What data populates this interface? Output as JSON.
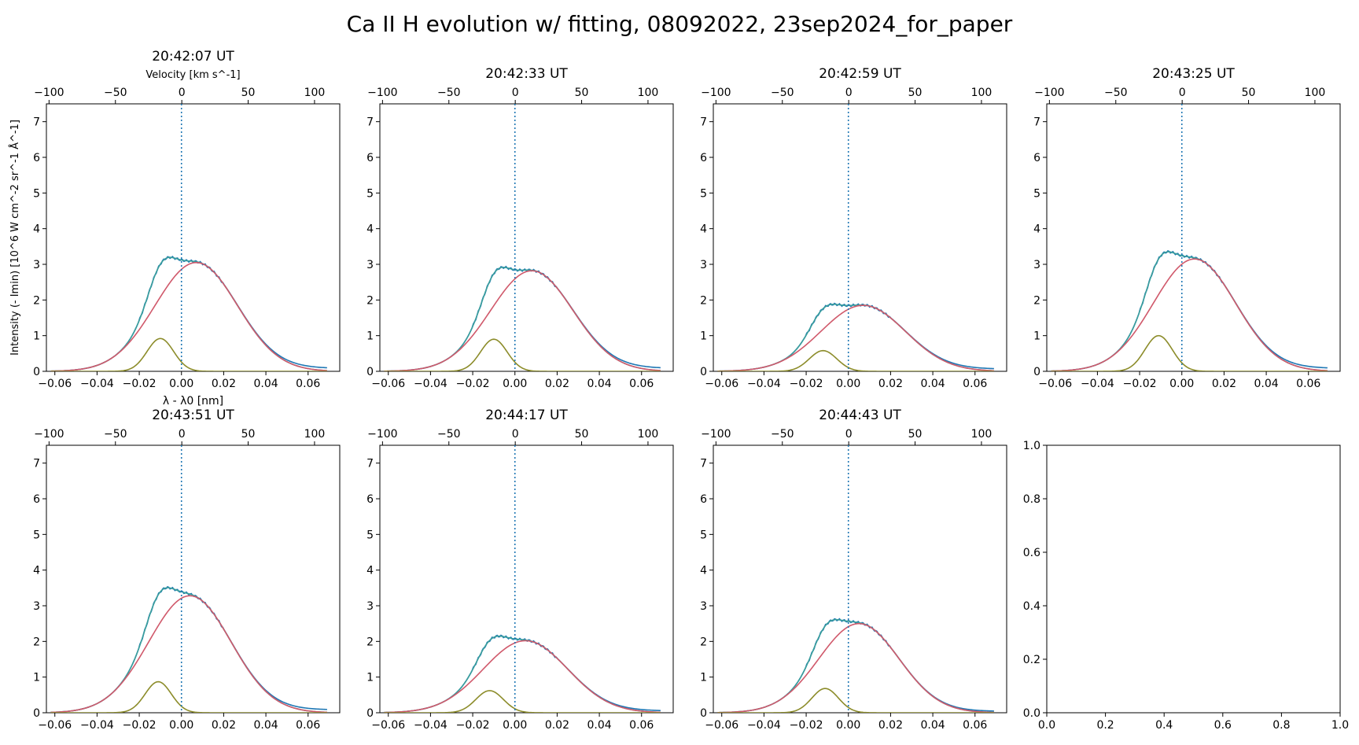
{
  "figure": {
    "title": "Ca II H evolution w/ fitting, 08092022, 23sep2024_for_paper",
    "colors": {
      "observed": "#1f77b4",
      "total_fit": "#3a9e9c",
      "red_component": "#d0596b",
      "blue_component": "#8c8c2a",
      "rest_line": "#1f77b4"
    }
  },
  "chart_data": [
    {
      "type": "line",
      "title": "20:42:07 UT",
      "xlabel": "λ - λ0 [nm]",
      "ylabel": "Intensity (- Imin) [10^6 W cm^-2 sr^-1 Å^-1]",
      "top_xlabel": "Velocity [km s^-1]",
      "xlim": [
        -0.064,
        0.075
      ],
      "ylim": [
        0,
        7.5
      ],
      "top_xlim": [
        -102,
        119
      ],
      "xticks": [
        -0.06,
        -0.04,
        -0.02,
        0.0,
        0.02,
        0.04,
        0.06
      ],
      "xtick_labels": [
        "−0.06",
        "−0.04",
        "−0.02",
        "0.00",
        "0.02",
        "0.04",
        "0.06"
      ],
      "yticks": [
        0,
        1,
        2,
        3,
        4,
        5,
        6,
        7
      ],
      "ytick_labels": [
        "0",
        "1",
        "2",
        "3",
        "4",
        "5",
        "6",
        "7"
      ],
      "top_xticks": [
        -100,
        -50,
        0,
        50,
        100
      ],
      "top_xtick_labels": [
        "−100",
        "−50",
        "0",
        "50",
        "100"
      ],
      "rest_line_x": 0,
      "red_component": {
        "amp": 3.05,
        "center": 0.007,
        "sigma": 0.0195
      },
      "blue_component": {
        "amp": 0.92,
        "center": -0.01,
        "sigma": 0.0063
      },
      "far_wing": 0.08
    },
    {
      "type": "line",
      "title": "20:42:33 UT",
      "xlim": [
        -0.064,
        0.075
      ],
      "ylim": [
        0,
        7.5
      ],
      "top_xlim": [
        -102,
        119
      ],
      "xticks": [
        -0.06,
        -0.04,
        -0.02,
        0.0,
        0.02,
        0.04,
        0.06
      ],
      "xtick_labels": [
        "−0.06",
        "−0.04",
        "−0.02",
        "0.00",
        "0.02",
        "0.04",
        "0.06"
      ],
      "yticks": [
        0,
        1,
        2,
        3,
        4,
        5,
        6,
        7
      ],
      "ytick_labels": [
        "0",
        "1",
        "2",
        "3",
        "4",
        "5",
        "6",
        "7"
      ],
      "top_xticks": [
        -100,
        -50,
        0,
        50,
        100
      ],
      "top_xtick_labels": [
        "−100",
        "−50",
        "0",
        "50",
        "100"
      ],
      "rest_line_x": 0,
      "red_component": {
        "amp": 2.82,
        "center": 0.008,
        "sigma": 0.0195
      },
      "blue_component": {
        "amp": 0.9,
        "center": -0.01,
        "sigma": 0.0063
      },
      "far_wing": 0.08
    },
    {
      "type": "line",
      "title": "20:42:59 UT",
      "xlim": [
        -0.064,
        0.075
      ],
      "ylim": [
        0,
        7.5
      ],
      "top_xlim": [
        -102,
        119
      ],
      "xticks": [
        -0.06,
        -0.04,
        -0.02,
        0.0,
        0.02,
        0.04,
        0.06
      ],
      "xtick_labels": [
        "−0.06",
        "−0.04",
        "−0.02",
        "0.00",
        "0.02",
        "0.04",
        "0.06"
      ],
      "yticks": [
        0,
        1,
        2,
        3,
        4,
        5,
        6,
        7
      ],
      "ytick_labels": [
        "0",
        "1",
        "2",
        "3",
        "4",
        "5",
        "6",
        "7"
      ],
      "top_xticks": [
        -100,
        -50,
        0,
        50,
        100
      ],
      "top_xtick_labels": [
        "−100",
        "−50",
        "0",
        "50",
        "100"
      ],
      "rest_line_x": 0,
      "red_component": {
        "amp": 1.85,
        "center": 0.007,
        "sigma": 0.02
      },
      "blue_component": {
        "amp": 0.58,
        "center": -0.012,
        "sigma": 0.0065
      },
      "far_wing": 0.06
    },
    {
      "type": "line",
      "title": "20:43:25 UT",
      "xlim": [
        -0.064,
        0.075
      ],
      "ylim": [
        0,
        7.5
      ],
      "top_xlim": [
        -102,
        119
      ],
      "xticks": [
        -0.06,
        -0.04,
        -0.02,
        0.0,
        0.02,
        0.04,
        0.06
      ],
      "xtick_labels": [
        "−0.06",
        "−0.04",
        "−0.02",
        "0.00",
        "0.02",
        "0.04",
        "0.06"
      ],
      "yticks": [
        0,
        1,
        2,
        3,
        4,
        5,
        6,
        7
      ],
      "ytick_labels": [
        "0",
        "1",
        "2",
        "3",
        "4",
        "5",
        "6",
        "7"
      ],
      "top_xticks": [
        -100,
        -50,
        0,
        50,
        100
      ],
      "top_xtick_labels": [
        "−100",
        "−50",
        "0",
        "50",
        "100"
      ],
      "rest_line_x": 0,
      "red_component": {
        "amp": 3.15,
        "center": 0.006,
        "sigma": 0.0195
      },
      "blue_component": {
        "amp": 1.0,
        "center": -0.011,
        "sigma": 0.0065
      },
      "far_wing": 0.08
    },
    {
      "type": "line",
      "title": "20:43:51 UT",
      "xlim": [
        -0.064,
        0.075
      ],
      "ylim": [
        0,
        7.5
      ],
      "top_xlim": [
        -102,
        119
      ],
      "xticks": [
        -0.06,
        -0.04,
        -0.02,
        0.0,
        0.02,
        0.04,
        0.06
      ],
      "xtick_labels": [
        "−0.06",
        "−0.04",
        "−0.02",
        "0.00",
        "0.02",
        "0.04",
        "0.06"
      ],
      "yticks": [
        0,
        1,
        2,
        3,
        4,
        5,
        6,
        7
      ],
      "ytick_labels": [
        "0",
        "1",
        "2",
        "3",
        "4",
        "5",
        "6",
        "7"
      ],
      "top_xticks": [
        -100,
        -50,
        0,
        50,
        100
      ],
      "top_xtick_labels": [
        "−100",
        "−50",
        "0",
        "50",
        "100"
      ],
      "rest_line_x": 0,
      "red_component": {
        "amp": 3.28,
        "center": 0.004,
        "sigma": 0.0195
      },
      "blue_component": {
        "amp": 0.87,
        "center": -0.011,
        "sigma": 0.0062
      },
      "far_wing": 0.08
    },
    {
      "type": "line",
      "title": "20:44:17 UT",
      "xlim": [
        -0.064,
        0.075
      ],
      "ylim": [
        0,
        7.5
      ],
      "top_xlim": [
        -102,
        119
      ],
      "xticks": [
        -0.06,
        -0.04,
        -0.02,
        0.0,
        0.02,
        0.04,
        0.06
      ],
      "xtick_labels": [
        "−0.06",
        "−0.04",
        "−0.02",
        "0.00",
        "0.02",
        "0.04",
        "0.06"
      ],
      "yticks": [
        0,
        1,
        2,
        3,
        4,
        5,
        6,
        7
      ],
      "ytick_labels": [
        "0",
        "1",
        "2",
        "3",
        "4",
        "5",
        "6",
        "7"
      ],
      "top_xticks": [
        -100,
        -50,
        0,
        50,
        100
      ],
      "top_xtick_labels": [
        "−100",
        "−50",
        "0",
        "50",
        "100"
      ],
      "rest_line_x": 0,
      "red_component": {
        "amp": 2.02,
        "center": 0.005,
        "sigma": 0.02
      },
      "blue_component": {
        "amp": 0.62,
        "center": -0.012,
        "sigma": 0.0065
      },
      "far_wing": 0.05
    },
    {
      "type": "line",
      "title": "20:44:43 UT",
      "xlim": [
        -0.064,
        0.075
      ],
      "ylim": [
        0,
        7.5
      ],
      "top_xlim": [
        -102,
        119
      ],
      "xticks": [
        -0.06,
        -0.04,
        -0.02,
        0.0,
        0.02,
        0.04,
        0.06
      ],
      "xtick_labels": [
        "−0.06",
        "−0.04",
        "−0.02",
        "0.00",
        "0.02",
        "0.04",
        "0.06"
      ],
      "yticks": [
        0,
        1,
        2,
        3,
        4,
        5,
        6,
        7
      ],
      "ytick_labels": [
        "0",
        "1",
        "2",
        "3",
        "4",
        "5",
        "6",
        "7"
      ],
      "top_xticks": [
        -100,
        -50,
        0,
        50,
        100
      ],
      "top_xtick_labels": [
        "−100",
        "−50",
        "0",
        "50",
        "100"
      ],
      "rest_line_x": 0,
      "red_component": {
        "amp": 2.5,
        "center": 0.005,
        "sigma": 0.019
      },
      "blue_component": {
        "amp": 0.68,
        "center": -0.011,
        "sigma": 0.0063
      },
      "far_wing": 0.04
    },
    {
      "type": "line",
      "empty": true,
      "xlim": [
        0,
        1
      ],
      "ylim": [
        0,
        1
      ],
      "xticks": [
        0,
        0.2,
        0.4,
        0.6,
        0.8,
        1.0
      ],
      "xtick_labels": [
        "0.0",
        "0.2",
        "0.4",
        "0.6",
        "0.8",
        "1.0"
      ],
      "yticks": [
        0,
        0.2,
        0.4,
        0.6,
        0.8,
        1.0
      ],
      "ytick_labels": [
        "0.0",
        "0.2",
        "0.4",
        "0.6",
        "0.8",
        "1.0"
      ]
    }
  ]
}
